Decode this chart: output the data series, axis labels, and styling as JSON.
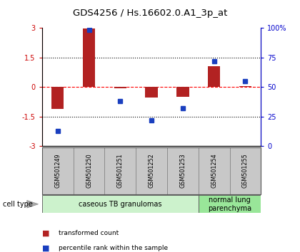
{
  "title": "GDS4256 / Hs.16602.0.A1_3p_at",
  "samples": [
    "GSM501249",
    "GSM501250",
    "GSM501251",
    "GSM501252",
    "GSM501253",
    "GSM501254",
    "GSM501255"
  ],
  "transformed_counts": [
    -1.1,
    2.95,
    -0.08,
    -0.55,
    -0.5,
    1.05,
    0.05
  ],
  "percentile_ranks": [
    13,
    98,
    38,
    22,
    32,
    72,
    55
  ],
  "ylim_left": [
    -3,
    3
  ],
  "ylim_right": [
    0,
    100
  ],
  "yticks_left": [
    -3,
    -1.5,
    0,
    1.5,
    3
  ],
  "yticks_right": [
    0,
    25,
    50,
    75,
    100
  ],
  "ytick_labels_left": [
    "-3",
    "-1.5",
    "0",
    "1.5",
    "3"
  ],
  "ytick_labels_right": [
    "0",
    "25",
    "50",
    "75",
    "100%"
  ],
  "hlines": [
    -1.5,
    0.0,
    1.5
  ],
  "hline_styles": [
    "dotted",
    "dashed",
    "dotted"
  ],
  "hline_colors": [
    "black",
    "red",
    "black"
  ],
  "cell_type_groups": [
    {
      "label": "caseous TB granulomas",
      "n_samples": 5,
      "color": "#ccf2cc"
    },
    {
      "label": "normal lung\nparenchyma",
      "n_samples": 2,
      "color": "#99e699"
    }
  ],
  "bar_color": "#b22222",
  "dot_color": "#1a3fbf",
  "bar_width": 0.4,
  "legend_items": [
    {
      "label": "transformed count",
      "color": "#b22222"
    },
    {
      "label": "percentile rank within the sample",
      "color": "#1a3fbf"
    }
  ],
  "cell_type_label": "cell type",
  "sample_box_color": "#c8c8c8",
  "bg_color": "#ffffff",
  "left_axis_color": "#cc0000",
  "right_axis_color": "#0000cc"
}
